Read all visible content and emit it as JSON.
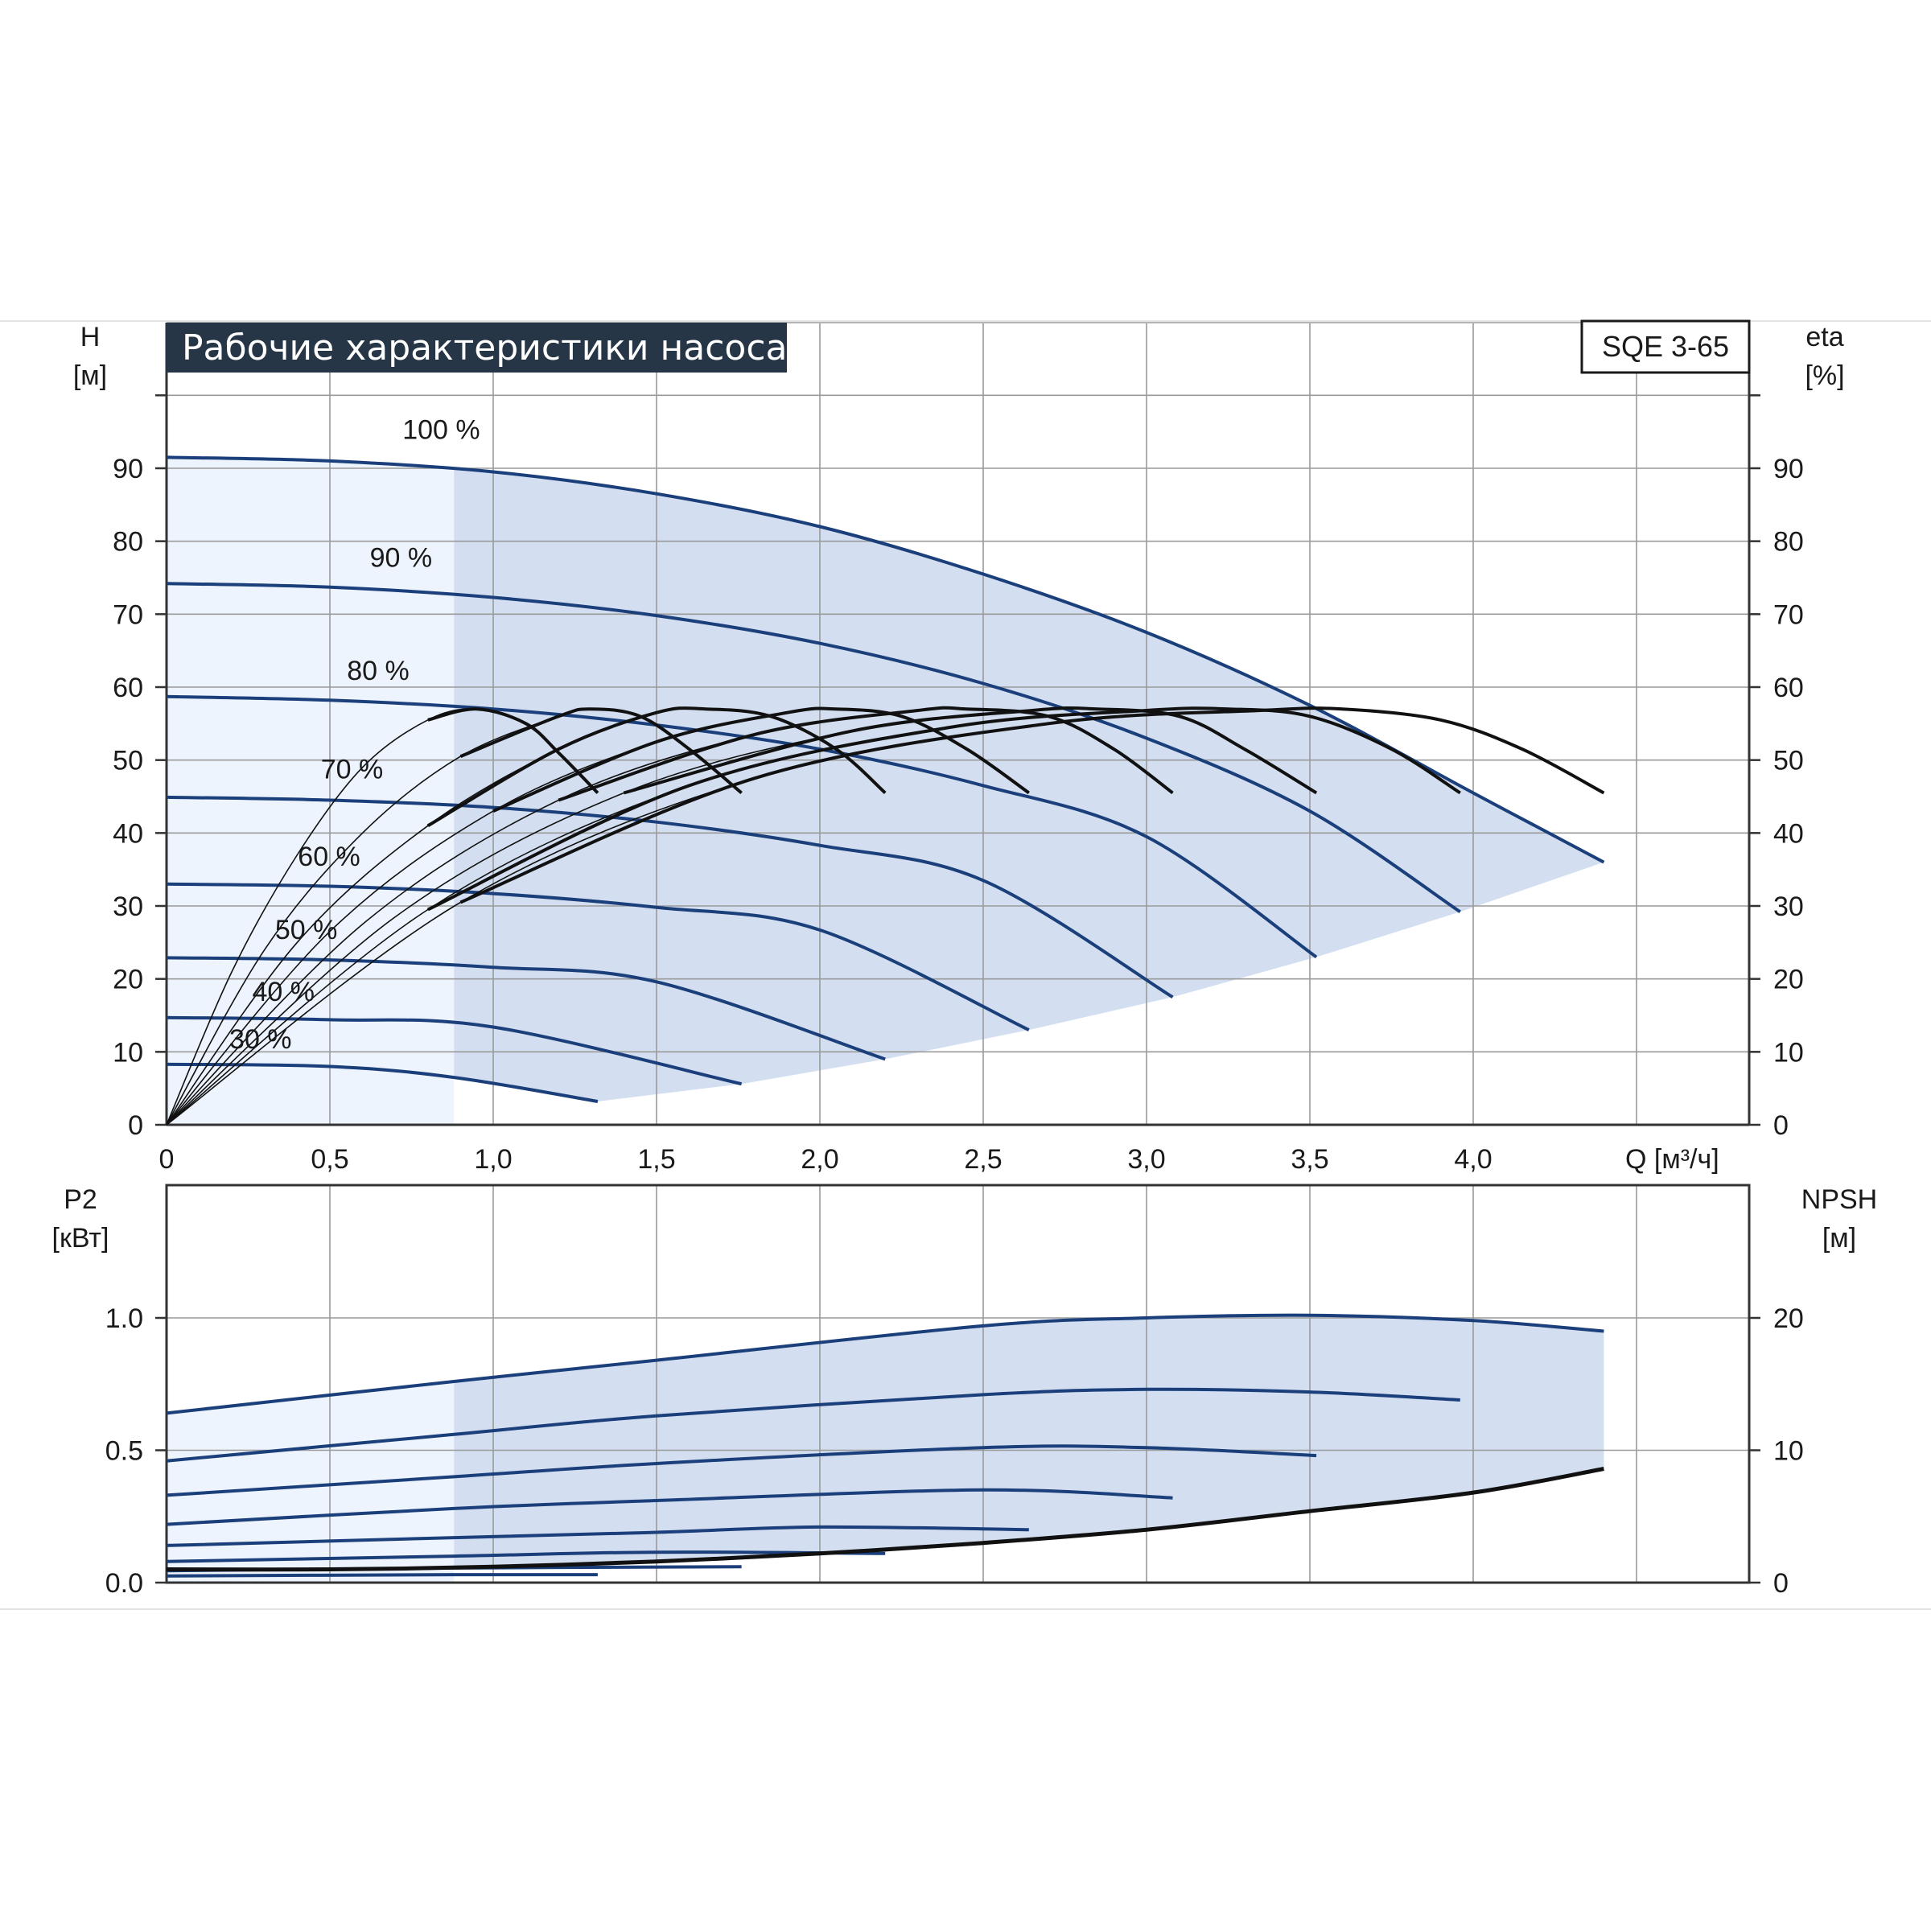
{
  "title": "Рабочие характеристики насоса",
  "model": "SQE 3-65",
  "colors": {
    "curve": "#1a3f7a",
    "efficiency": "#111111",
    "region_dark": "#d3dff0",
    "region_light": "#edf4fd",
    "grid": "#9a9a9a",
    "title_bg": "#263646"
  },
  "chart_data": [
    {
      "id": "head",
      "type": "line",
      "xlabel": "Q [м³/ч]",
      "ylabel_left": [
        "H",
        "[м]"
      ],
      "ylabel_right": [
        "eta",
        "[%]"
      ],
      "xlim": [
        0,
        4.85
      ],
      "ylim": [
        0,
        100
      ],
      "x_ticks": [
        "0",
        "0,5",
        "1,0",
        "1,5",
        "2,0",
        "2,5",
        "3,0",
        "3,5",
        "4,0"
      ],
      "y_ticks": [
        "0",
        "10",
        "20",
        "30",
        "40",
        "50",
        "60",
        "70",
        "80",
        "90"
      ],
      "grid": true,
      "operating_region_x_min": 0.88,
      "speed_curves": [
        {
          "label": "100 %",
          "points": [
            [
              0,
              91.5
            ],
            [
              0.5,
              91
            ],
            [
              1.0,
              89.5
            ],
            [
              1.5,
              86.5
            ],
            [
              2.0,
              82
            ],
            [
              2.5,
              75.5
            ],
            [
              3.0,
              67.5
            ],
            [
              3.5,
              57.5
            ],
            [
              4.0,
              45.5
            ],
            [
              4.4,
              36
            ]
          ]
        },
        {
          "label": "90 %",
          "points": [
            [
              0,
              74.2
            ],
            [
              0.5,
              73.7
            ],
            [
              1.0,
              72.3
            ],
            [
              1.5,
              69.8
            ],
            [
              2.0,
              66
            ],
            [
              2.5,
              60.5
            ],
            [
              3.0,
              53
            ],
            [
              3.5,
              43
            ],
            [
              3.96,
              29.2
            ]
          ]
        },
        {
          "label": "80 %",
          "points": [
            [
              0,
              58.7
            ],
            [
              0.5,
              58.2
            ],
            [
              1.0,
              57
            ],
            [
              1.5,
              54.8
            ],
            [
              2.0,
              51.5
            ],
            [
              2.5,
              46.5
            ],
            [
              3.0,
              39.5
            ],
            [
              3.52,
              23
            ]
          ]
        },
        {
          "label": "70 %",
          "points": [
            [
              0,
              44.9
            ],
            [
              0.5,
              44.5
            ],
            [
              1.0,
              43.5
            ],
            [
              1.5,
              41.5
            ],
            [
              2.0,
              38.3
            ],
            [
              2.5,
              33.5
            ],
            [
              3.08,
              17.5
            ]
          ]
        },
        {
          "label": "60 %",
          "points": [
            [
              0,
              33
            ],
            [
              0.5,
              32.7
            ],
            [
              1.0,
              31.7
            ],
            [
              1.5,
              29.8
            ],
            [
              2.0,
              26.7
            ],
            [
              2.64,
              13
            ]
          ]
        },
        {
          "label": "50 %",
          "points": [
            [
              0,
              22.9
            ],
            [
              0.5,
              22.6
            ],
            [
              1.0,
              21.6
            ],
            [
              1.5,
              19.6
            ],
            [
              2.2,
              9
            ]
          ]
        },
        {
          "label": "40 %",
          "points": [
            [
              0,
              14.7
            ],
            [
              0.5,
              14.4
            ],
            [
              1.0,
              13.4
            ],
            [
              1.76,
              5.6
            ]
          ]
        },
        {
          "label": "30 %",
          "points": [
            [
              0,
              8.3
            ],
            [
              0.5,
              8
            ],
            [
              0.88,
              6.5
            ],
            [
              1.32,
              3.2
            ]
          ]
        }
      ],
      "efficiency_curves": [
        {
          "points": [
            [
              0,
              0
            ],
            [
              0.2,
              21
            ],
            [
              0.4,
              37
            ],
            [
              0.6,
              49
            ],
            [
              0.8,
              55.5
            ],
            [
              0.95,
              57
            ],
            [
              1.1,
              55
            ],
            [
              1.2,
              51
            ],
            [
              1.32,
              45.5
            ]
          ]
        },
        {
          "points": [
            [
              0,
              0
            ],
            [
              0.3,
              24
            ],
            [
              0.6,
              40
            ],
            [
              0.9,
              50.5
            ],
            [
              1.2,
              56
            ],
            [
              1.3,
              57
            ],
            [
              1.45,
              56
            ],
            [
              1.6,
              51.5
            ],
            [
              1.76,
              45.5
            ]
          ]
        },
        {
          "points": [
            [
              0,
              0
            ],
            [
              0.4,
              25
            ],
            [
              0.8,
              41
            ],
            [
              1.2,
              51.5
            ],
            [
              1.5,
              56.5
            ],
            [
              1.65,
              57
            ],
            [
              1.85,
              56
            ],
            [
              2.05,
              51.5
            ],
            [
              2.2,
              45.5
            ]
          ]
        },
        {
          "points": [
            [
              0,
              0
            ],
            [
              0.5,
              26.5
            ],
            [
              1.0,
              43
            ],
            [
              1.5,
              52.5
            ],
            [
              1.9,
              56.5
            ],
            [
              2.05,
              57
            ],
            [
              2.25,
              56
            ],
            [
              2.45,
              51.5
            ],
            [
              2.64,
              45.5
            ]
          ]
        },
        {
          "points": [
            [
              0,
              0
            ],
            [
              0.6,
              27.5
            ],
            [
              1.2,
              44.5
            ],
            [
              1.8,
              53.5
            ],
            [
              2.3,
              56.8
            ],
            [
              2.45,
              57
            ],
            [
              2.7,
              56
            ],
            [
              2.9,
              51.5
            ],
            [
              3.08,
              45.5
            ]
          ]
        },
        {
          "points": [
            [
              0,
              0
            ],
            [
              0.7,
              28.5
            ],
            [
              1.4,
              45.5
            ],
            [
              2.1,
              54
            ],
            [
              2.65,
              56.8
            ],
            [
              2.85,
              57
            ],
            [
              3.1,
              56
            ],
            [
              3.3,
              51.5
            ],
            [
              3.52,
              45.5
            ]
          ]
        },
        {
          "points": [
            [
              0,
              0
            ],
            [
              0.8,
              29.5
            ],
            [
              1.6,
              46.5
            ],
            [
              2.4,
              54.5
            ],
            [
              3.0,
              56.8
            ],
            [
              3.25,
              57
            ],
            [
              3.5,
              56
            ],
            [
              3.75,
              51.5
            ],
            [
              3.96,
              45.5
            ]
          ]
        },
        {
          "points": [
            [
              0,
              0
            ],
            [
              0.9,
              30.5
            ],
            [
              1.8,
              47.5
            ],
            [
              2.7,
              55
            ],
            [
              3.35,
              56.8
            ],
            [
              3.6,
              57
            ],
            [
              3.9,
              55.5
            ],
            [
              4.15,
              51.5
            ],
            [
              4.4,
              45.5
            ]
          ]
        }
      ],
      "labels": [
        {
          "text": "100 %",
          "x": 0.87,
          "y": 94
        },
        {
          "text": "90 %",
          "x": 0.77,
          "y": 76.5
        },
        {
          "text": "80 %",
          "x": 0.7,
          "y": 61
        },
        {
          "text": "70 %",
          "x": 0.62,
          "y": 47.5
        },
        {
          "text": "60 %",
          "x": 0.55,
          "y": 35.5
        },
        {
          "text": "50 %",
          "x": 0.48,
          "y": 25.5
        },
        {
          "text": "40 %",
          "x": 0.41,
          "y": 17
        },
        {
          "text": "30 %",
          "x": 0.34,
          "y": 10.5
        }
      ]
    },
    {
      "id": "power",
      "type": "line",
      "ylabel_left": [
        "P2",
        "[кВт]"
      ],
      "ylabel_right": [
        "NPSH",
        "[м]"
      ],
      "xlim": [
        0,
        4.85
      ],
      "ylim": [
        0,
        1.5
      ],
      "y_ticks_left": [
        "0.0",
        "0.5",
        "1.0"
      ],
      "y_ticks_right": [
        "0",
        "10",
        "20"
      ],
      "grid": true,
      "power_curves": [
        {
          "points": [
            [
              0,
              0.64
            ],
            [
              0.88,
              0.76
            ],
            [
              1.5,
              0.84
            ],
            [
              2.5,
              0.97
            ],
            [
              3.0,
              1.0
            ],
            [
              3.5,
              1.01
            ],
            [
              4.0,
              0.99
            ],
            [
              4.4,
              0.95
            ]
          ]
        },
        {
          "points": [
            [
              0,
              0.46
            ],
            [
              0.88,
              0.56
            ],
            [
              1.5,
              0.63
            ],
            [
              2.5,
              0.71
            ],
            [
              3.0,
              0.73
            ],
            [
              3.5,
              0.72
            ],
            [
              3.96,
              0.69
            ]
          ]
        },
        {
          "points": [
            [
              0,
              0.33
            ],
            [
              0.88,
              0.4
            ],
            [
              1.5,
              0.45
            ],
            [
              2.5,
              0.51
            ],
            [
              3.0,
              0.51
            ],
            [
              3.52,
              0.48
            ]
          ]
        },
        {
          "points": [
            [
              0,
              0.22
            ],
            [
              0.88,
              0.28
            ],
            [
              1.5,
              0.31
            ],
            [
              2.5,
              0.35
            ],
            [
              3.08,
              0.32
            ]
          ]
        },
        {
          "points": [
            [
              0,
              0.14
            ],
            [
              0.88,
              0.17
            ],
            [
              1.5,
              0.19
            ],
            [
              2.0,
              0.21
            ],
            [
              2.64,
              0.2
            ]
          ]
        },
        {
          "points": [
            [
              0,
              0.08
            ],
            [
              0.88,
              0.1
            ],
            [
              1.5,
              0.115
            ],
            [
              2.2,
              0.11
            ]
          ]
        },
        {
          "points": [
            [
              0,
              0.045
            ],
            [
              0.88,
              0.055
            ],
            [
              1.76,
              0.06
            ]
          ]
        },
        {
          "points": [
            [
              0,
              0.025
            ],
            [
              0.88,
              0.03
            ],
            [
              1.32,
              0.03
            ]
          ]
        }
      ],
      "npsh_curve": {
        "points": [
          [
            0,
            0.05
          ],
          [
            0.5,
            0.05
          ],
          [
            1.0,
            0.06
          ],
          [
            1.5,
            0.08
          ],
          [
            2.0,
            0.11
          ],
          [
            2.5,
            0.15
          ],
          [
            3.0,
            0.2
          ],
          [
            3.5,
            0.27
          ],
          [
            4.0,
            0.34
          ],
          [
            4.4,
            0.43
          ]
        ]
      }
    }
  ]
}
